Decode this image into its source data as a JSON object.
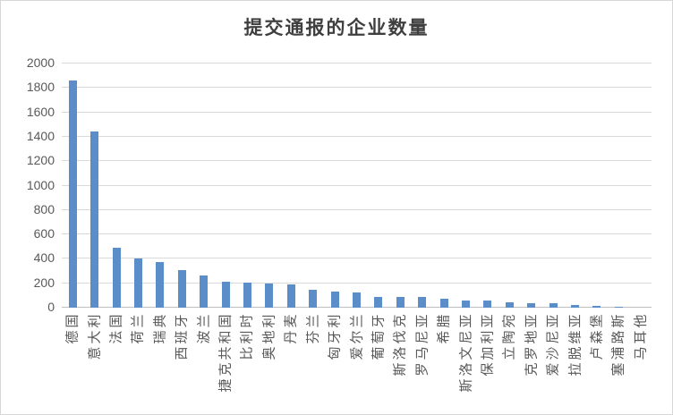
{
  "chart_data": {
    "type": "bar",
    "title": "提交通报的企业数量",
    "categories": [
      "德国",
      "意大利",
      "法国",
      "荷兰",
      "瑞典",
      "西班牙",
      "波兰",
      "捷克共和国",
      "比利时",
      "奥地利",
      "丹麦",
      "芬兰",
      "匈牙利",
      "爱尔兰",
      "葡萄牙",
      "斯洛伐克",
      "罗马尼亚",
      "希腊",
      "斯洛文尼亚",
      "保加利亚",
      "立陶宛",
      "克罗地亚",
      "爱沙尼亚",
      "拉脱维亚",
      "卢森堡",
      "塞浦路斯",
      "马耳他"
    ],
    "values": [
      1860,
      1440,
      490,
      400,
      370,
      305,
      265,
      215,
      205,
      200,
      190,
      150,
      130,
      127,
      90,
      88,
      85,
      75,
      60,
      58,
      45,
      40,
      38,
      20,
      13,
      6,
      3
    ],
    "xlabel": "",
    "ylabel": "",
    "ylim": [
      0,
      2000
    ],
    "ytick_step": 200,
    "grid": "on",
    "legend": "none",
    "bar_color": "#5b8dc9",
    "gridline_color": "#d9d9d9",
    "axis_color": "#bfbfbf",
    "tick_label_color": "#595959",
    "background_color": "#ffffff",
    "border_color": "#d6d6d6"
  }
}
